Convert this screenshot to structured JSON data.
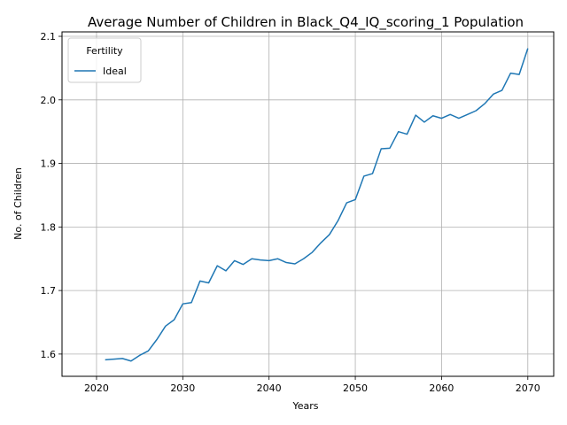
{
  "chart_data": {
    "type": "line",
    "title": "Average Number of Children in Black_Q4_IQ_scoring_1 Population",
    "xlabel": "Years",
    "ylabel": "No. of Children",
    "xlim": [
      2016,
      2073
    ],
    "ylim": [
      1.565,
      2.107
    ],
    "xticks": [
      2020,
      2030,
      2040,
      2050,
      2060,
      2070
    ],
    "xtick_labels": [
      "2020",
      "2030",
      "2040",
      "2050",
      "2060",
      "2070"
    ],
    "yticks": [
      1.6,
      1.7,
      1.8,
      1.9,
      2.0,
      2.1
    ],
    "ytick_labels": [
      "1.6",
      "1.7",
      "1.8",
      "1.9",
      "2.0",
      "2.1"
    ],
    "grid": true,
    "legend": {
      "title": "Fertility",
      "position": "top-left"
    },
    "series": [
      {
        "name": "Ideal",
        "color": "#1f77b4",
        "x": [
          2021,
          2022,
          2023,
          2024,
          2025,
          2026,
          2027,
          2028,
          2029,
          2030,
          2031,
          2032,
          2033,
          2034,
          2035,
          2036,
          2037,
          2038,
          2039,
          2040,
          2041,
          2042,
          2043,
          2044,
          2045,
          2046,
          2047,
          2048,
          2049,
          2050,
          2051,
          2052,
          2053,
          2054,
          2055,
          2056,
          2057,
          2058,
          2059,
          2060,
          2061,
          2062,
          2063,
          2064,
          2065,
          2066,
          2067,
          2068,
          2069,
          2070
        ],
        "values": [
          1.591,
          1.592,
          1.593,
          1.589,
          1.598,
          1.605,
          1.623,
          1.644,
          1.654,
          1.679,
          1.681,
          1.715,
          1.712,
          1.739,
          1.731,
          1.747,
          1.741,
          1.75,
          1.748,
          1.747,
          1.75,
          1.744,
          1.742,
          1.75,
          1.76,
          1.775,
          1.788,
          1.81,
          1.838,
          1.843,
          1.88,
          1.884,
          1.923,
          1.924,
          1.95,
          1.946,
          1.976,
          1.965,
          1.975,
          1.971,
          1.977,
          1.971,
          1.977,
          1.983,
          1.994,
          2.009,
          2.015,
          2.042,
          2.04,
          2.081
        ]
      }
    ]
  }
}
